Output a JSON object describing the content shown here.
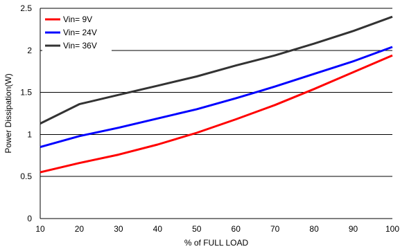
{
  "chart_data": {
    "type": "line",
    "title": "",
    "xlabel": "% of FULL LOAD",
    "ylabel": "Power Dissipation(W)",
    "xlim": [
      10,
      100
    ],
    "ylim": [
      0,
      2.5
    ],
    "xticks": [
      10,
      20,
      30,
      40,
      50,
      60,
      70,
      80,
      90,
      100
    ],
    "yticks": [
      0,
      0.5,
      1,
      1.5,
      2,
      2.5
    ],
    "xtick_labels": [
      "10",
      "20",
      "30",
      "40",
      "50",
      "60",
      "70",
      "80",
      "90",
      "100"
    ],
    "ytick_labels": [
      "0",
      "0.5",
      "1",
      "1.5",
      "2",
      "2.5"
    ],
    "grid": "horizontal",
    "legend_position": "top-left",
    "series": [
      {
        "name": "Vin= 9V",
        "color": "#ff0000",
        "x": [
          10,
          20,
          30,
          40,
          50,
          60,
          70,
          80,
          90,
          100
        ],
        "y": [
          0.55,
          0.66,
          0.76,
          0.88,
          1.02,
          1.18,
          1.35,
          1.54,
          1.74,
          1.94
        ]
      },
      {
        "name": "Vin= 24V",
        "color": "#0000ff",
        "x": [
          10,
          20,
          30,
          40,
          50,
          60,
          70,
          80,
          90,
          100
        ],
        "y": [
          0.85,
          0.98,
          1.08,
          1.19,
          1.3,
          1.43,
          1.57,
          1.72,
          1.87,
          2.04
        ]
      },
      {
        "name": "Vin= 36V",
        "color": "#333333",
        "x": [
          10,
          20,
          30,
          40,
          50,
          60,
          70,
          80,
          90,
          100
        ],
        "y": [
          1.13,
          1.36,
          1.47,
          1.58,
          1.69,
          1.82,
          1.94,
          2.08,
          2.23,
          2.4
        ]
      }
    ]
  }
}
